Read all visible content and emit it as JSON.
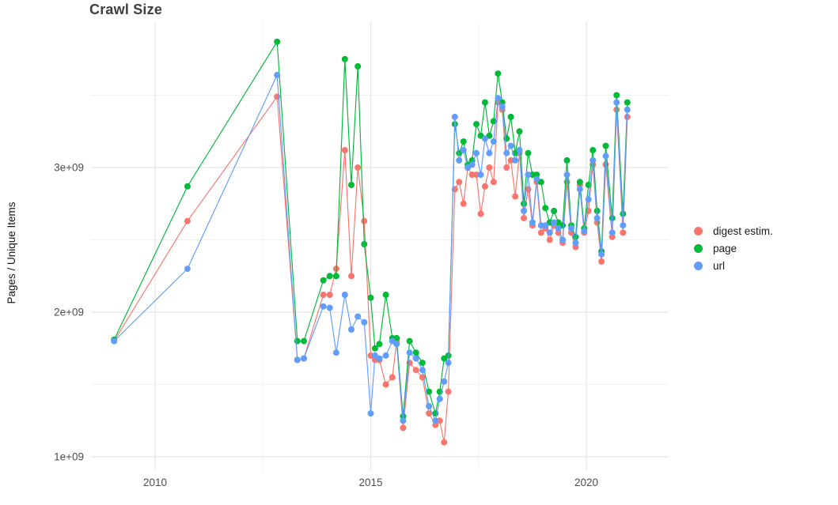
{
  "title": "Crawl Size",
  "axes": {
    "y_label": "Pages / Unique Items",
    "y_ticks": [
      "1e+09",
      "2e+09",
      "3e+09"
    ],
    "y_tick_values": [
      1,
      2,
      3
    ],
    "y_minor_values": [
      1.5,
      2.5,
      3.5
    ],
    "x_ticks": [
      "2010",
      "2015",
      "2020"
    ],
    "x_tick_values": [
      2010,
      2015,
      2020
    ],
    "x_minor_values": [
      2012.5,
      2017.5
    ]
  },
  "legend": {
    "items": [
      {
        "label": "digest estim.",
        "color": "#F8766D"
      },
      {
        "label": "page",
        "color": "#00BA38"
      },
      {
        "label": "url",
        "color": "#619CFF"
      }
    ]
  },
  "chart_data": {
    "type": "line",
    "title": "Crawl Size",
    "xlabel": "",
    "ylabel": "Pages / Unique Items",
    "unit": "1e+09 (values below are in billions)",
    "xlim": [
      2008.5,
      2021.9
    ],
    "ylim_e9": [
      0.9,
      4.0
    ],
    "grid": true,
    "legend_position": "right",
    "x": [
      2009.05,
      2010.75,
      2012.83,
      2013.3,
      2013.45,
      2013.9,
      2014.05,
      2014.2,
      2014.4,
      2014.55,
      2014.7,
      2014.85,
      2015.0,
      2015.1,
      2015.2,
      2015.35,
      2015.5,
      2015.6,
      2015.75,
      2015.9,
      2016.05,
      2016.2,
      2016.35,
      2016.5,
      2016.6,
      2016.7,
      2016.8,
      2016.95,
      2017.05,
      2017.15,
      2017.25,
      2017.35,
      2017.45,
      2017.55,
      2017.65,
      2017.75,
      2017.85,
      2017.95,
      2018.05,
      2018.15,
      2018.25,
      2018.35,
      2018.45,
      2018.55,
      2018.65,
      2018.75,
      2018.85,
      2018.95,
      2019.05,
      2019.15,
      2019.25,
      2019.35,
      2019.45,
      2019.55,
      2019.65,
      2019.75,
      2019.85,
      2019.95,
      2020.05,
      2020.15,
      2020.25,
      2020.35,
      2020.45,
      2020.6,
      2020.7,
      2020.85,
      2020.95
    ],
    "series": [
      {
        "name": "digest estim.",
        "color": "#F8766D",
        "values_e9": [
          1.8,
          2.63,
          3.49,
          1.67,
          1.68,
          2.12,
          2.12,
          2.3,
          3.12,
          2.25,
          3.0,
          2.63,
          1.7,
          1.67,
          1.67,
          1.5,
          1.55,
          1.8,
          1.2,
          1.65,
          1.6,
          1.55,
          1.3,
          1.22,
          1.25,
          1.1,
          1.45,
          2.85,
          2.9,
          2.75,
          3.0,
          2.95,
          2.95,
          2.68,
          2.87,
          3.0,
          2.9,
          3.45,
          3.4,
          3.0,
          3.05,
          2.8,
          3.1,
          2.65,
          2.85,
          2.6,
          2.9,
          2.55,
          2.58,
          2.5,
          2.6,
          2.55,
          2.48,
          2.9,
          2.55,
          2.45,
          2.88,
          2.55,
          2.7,
          3.02,
          2.62,
          2.35,
          3.02,
          2.52,
          3.4,
          2.55,
          3.35
        ]
      },
      {
        "name": "page",
        "color": "#00BA38",
        "values_e9": [
          1.81,
          2.87,
          3.87,
          1.8,
          1.8,
          2.22,
          2.25,
          2.25,
          3.75,
          2.88,
          3.7,
          2.47,
          2.1,
          1.75,
          1.78,
          2.12,
          1.82,
          1.82,
          1.28,
          1.8,
          1.72,
          1.65,
          1.45,
          1.3,
          1.45,
          1.68,
          1.7,
          3.3,
          3.1,
          3.18,
          3.02,
          3.05,
          3.3,
          3.22,
          3.45,
          3.22,
          3.32,
          3.65,
          3.45,
          3.2,
          3.35,
          3.1,
          3.25,
          2.75,
          3.1,
          2.95,
          2.95,
          2.9,
          2.72,
          2.62,
          2.7,
          2.62,
          2.6,
          3.05,
          2.6,
          2.52,
          2.9,
          2.58,
          2.88,
          3.12,
          2.7,
          2.42,
          3.15,
          2.65,
          3.5,
          2.68,
          3.45
        ]
      },
      {
        "name": "url",
        "color": "#619CFF",
        "values_e9": [
          1.8,
          2.3,
          3.64,
          1.67,
          1.68,
          2.04,
          2.03,
          1.72,
          2.12,
          1.88,
          1.97,
          1.93,
          1.3,
          1.7,
          1.68,
          1.7,
          1.8,
          1.78,
          1.25,
          1.72,
          1.68,
          1.6,
          1.35,
          1.25,
          1.4,
          1.52,
          1.65,
          3.35,
          3.05,
          3.12,
          3.0,
          3.02,
          3.1,
          2.95,
          3.2,
          3.1,
          3.18,
          3.48,
          3.42,
          3.1,
          3.15,
          3.05,
          3.12,
          2.7,
          2.95,
          2.62,
          2.92,
          2.6,
          2.6,
          2.55,
          2.62,
          2.58,
          2.5,
          2.95,
          2.58,
          2.48,
          2.85,
          2.56,
          2.78,
          3.05,
          2.65,
          2.4,
          3.08,
          2.55,
          3.45,
          2.6,
          3.4
        ]
      }
    ]
  }
}
